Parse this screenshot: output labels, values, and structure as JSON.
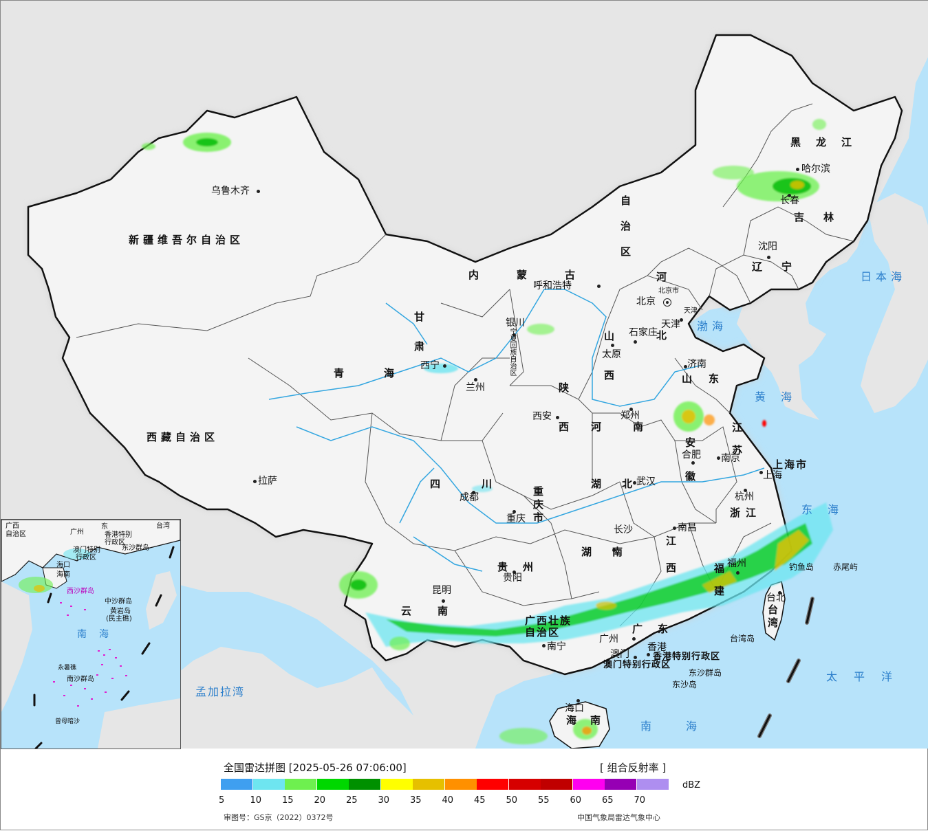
{
  "colors": {
    "ocean": "#b7e3fa",
    "china_land": "#f4f4f4",
    "foreign_land": "#e6e6e6",
    "border": "#111111",
    "halo": "#cccccc",
    "river": "#33a6e0",
    "sea_label": "#2a7ecb"
  },
  "provinces": [
    {
      "name": "新疆维吾尔自治区"
    },
    {
      "name": "西藏自治区"
    },
    {
      "name": "青海"
    },
    {
      "name": "甘肃"
    },
    {
      "name": "内蒙古"
    },
    {
      "name": "自治区"
    },
    {
      "name": "黑龙江"
    },
    {
      "name": "吉林"
    },
    {
      "name": "辽宁"
    },
    {
      "name": "河北"
    },
    {
      "name": "山西"
    },
    {
      "name": "陕西"
    },
    {
      "name": "河南"
    },
    {
      "name": "山东"
    },
    {
      "name": "江苏"
    },
    {
      "name": "安徽"
    },
    {
      "name": "上海市"
    },
    {
      "name": "浙江"
    },
    {
      "name": "四川"
    },
    {
      "name": "重庆市"
    },
    {
      "name": "湖北"
    },
    {
      "name": "湖南"
    },
    {
      "name": "江西"
    },
    {
      "name": "福建"
    },
    {
      "name": "贵州"
    },
    {
      "name": "云南"
    },
    {
      "name": "广西壮族自治区"
    },
    {
      "name": "广东"
    },
    {
      "name": "台湾"
    },
    {
      "name": "海南"
    },
    {
      "name": "香港特别行政区"
    },
    {
      "name": "澳门特别行政区"
    },
    {
      "name": "宁夏回族自治区"
    },
    {
      "name": "北京市"
    },
    {
      "name": "天津"
    }
  ],
  "cities": [
    {
      "name": "乌鲁木齐"
    },
    {
      "name": "拉萨"
    },
    {
      "name": "西宁"
    },
    {
      "name": "兰州"
    },
    {
      "name": "银川"
    },
    {
      "name": "呼和浩特"
    },
    {
      "name": "北京"
    },
    {
      "name": "天津"
    },
    {
      "name": "石家庄"
    },
    {
      "name": "太原"
    },
    {
      "name": "济南"
    },
    {
      "name": "郑州"
    },
    {
      "name": "西安"
    },
    {
      "name": "成都"
    },
    {
      "name": "重庆"
    },
    {
      "name": "武汉"
    },
    {
      "name": "合肥"
    },
    {
      "name": "南京"
    },
    {
      "name": "上海"
    },
    {
      "name": "杭州"
    },
    {
      "name": "长沙"
    },
    {
      "name": "南昌"
    },
    {
      "name": "福州"
    },
    {
      "name": "贵阳"
    },
    {
      "name": "昆明"
    },
    {
      "name": "南宁"
    },
    {
      "name": "广州"
    },
    {
      "name": "香港"
    },
    {
      "name": "澳门"
    },
    {
      "name": "海口"
    },
    {
      "name": "台北"
    },
    {
      "name": "沈阳"
    },
    {
      "name": "长春"
    },
    {
      "name": "哈尔滨"
    }
  ],
  "seas": [
    {
      "name": "日本海"
    },
    {
      "name": "渤海"
    },
    {
      "name": "黄海"
    },
    {
      "name": "东海"
    },
    {
      "name": "太平洋"
    },
    {
      "name": "南海"
    },
    {
      "name": "孟加拉湾"
    }
  ],
  "islands": [
    {
      "name": "钓鱼岛"
    },
    {
      "name": "赤尾屿"
    },
    {
      "name": "台湾岛"
    },
    {
      "name": "东沙群岛"
    },
    {
      "name": "东沙岛"
    }
  ],
  "inset": {
    "labels": [
      {
        "text": "广西"
      },
      {
        "text": "自治区"
      },
      {
        "text": "广州"
      },
      {
        "text": "东"
      },
      {
        "text": "香港特别"
      },
      {
        "text": "行政区"
      },
      {
        "text": "澳门特别"
      },
      {
        "text": "行政区"
      },
      {
        "text": "东沙群岛"
      },
      {
        "text": "台湾"
      },
      {
        "text": "海口"
      },
      {
        "text": "海南"
      },
      {
        "text": "西沙群岛"
      },
      {
        "text": "中沙群岛"
      },
      {
        "text": "黄岩岛"
      },
      {
        "text": "(民主礁)"
      },
      {
        "text": "南"
      },
      {
        "text": "海"
      },
      {
        "text": "永暑礁"
      },
      {
        "text": "南沙群岛"
      },
      {
        "text": "曾母暗沙"
      }
    ]
  },
  "legend": {
    "title": "全国雷达拼图 [2025-05-26 07:06:00]",
    "product": "[ 组合反射率 ]",
    "unit": "dBZ",
    "colors": [
      "#3f9ff0",
      "#6ee5f0",
      "#6ef04f",
      "#00d800",
      "#009000",
      "#ffff00",
      "#e6c000",
      "#ff9000",
      "#ff0000",
      "#d60000",
      "#c00000",
      "#ff00f0",
      "#9600b4",
      "#ae8ef0"
    ],
    "ticks": [
      "5",
      "10",
      "15",
      "20",
      "25",
      "30",
      "35",
      "40",
      "45",
      "50",
      "55",
      "60",
      "65",
      "70"
    ],
    "review_no": "审图号：GS京（2022）0372号",
    "source": "中国气象局雷达气象中心"
  }
}
